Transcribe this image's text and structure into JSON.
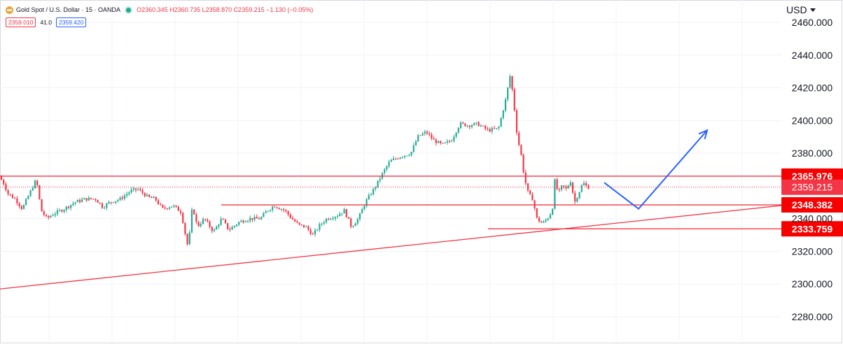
{
  "header": {
    "symbol_title": "Gold Spot / U.S. Dollar · 15 · OANDA",
    "ohlc": "O2360.345 H2360.735 L2358.870 C2359.215 −1.130 (−0.05%)",
    "sell_price": "2359.010",
    "spread": "41.0",
    "buy_price": "2359.420",
    "currency": "USD"
  },
  "colors": {
    "up": "#22ab94",
    "down": "#f23645",
    "line": "#f23645",
    "arrow": "#2962ff",
    "grid": "#f0f3fa"
  },
  "chart_data": {
    "type": "candlestick",
    "y_axis": {
      "min": 2270,
      "max": 2470,
      "ticks": [
        2280,
        2300,
        2320,
        2340,
        2360,
        2380,
        2400,
        2420,
        2440,
        2460
      ],
      "tick_labels": [
        "2280.000",
        "2300.000",
        "2320.000",
        "2340.000",
        "2360.000",
        "2380.000",
        "2400.000",
        "2420.000",
        "2440.000",
        "2460.000"
      ]
    },
    "grid": true,
    "price_path": [
      [
        0,
        2367
      ],
      [
        8,
        2362
      ],
      [
        15,
        2355
      ],
      [
        25,
        2352
      ],
      [
        35,
        2346
      ],
      [
        45,
        2355
      ],
      [
        55,
        2364
      ],
      [
        62,
        2345
      ],
      [
        70,
        2340
      ],
      [
        80,
        2343
      ],
      [
        95,
        2346
      ],
      [
        110,
        2350
      ],
      [
        125,
        2352
      ],
      [
        140,
        2352
      ],
      [
        150,
        2347
      ],
      [
        160,
        2350
      ],
      [
        175,
        2352
      ],
      [
        190,
        2357
      ],
      [
        200,
        2358
      ],
      [
        215,
        2353
      ],
      [
        225,
        2352
      ],
      [
        235,
        2346
      ],
      [
        250,
        2348
      ],
      [
        262,
        2344
      ],
      [
        268,
        2330
      ],
      [
        272,
        2322
      ],
      [
        278,
        2348
      ],
      [
        285,
        2335
      ],
      [
        295,
        2340
      ],
      [
        308,
        2332
      ],
      [
        320,
        2340
      ],
      [
        330,
        2333
      ],
      [
        345,
        2338
      ],
      [
        360,
        2340
      ],
      [
        375,
        2340
      ],
      [
        385,
        2345
      ],
      [
        395,
        2348
      ],
      [
        410,
        2345
      ],
      [
        420,
        2340
      ],
      [
        430,
        2336
      ],
      [
        440,
        2335
      ],
      [
        450,
        2330
      ],
      [
        460,
        2336
      ],
      [
        470,
        2340
      ],
      [
        485,
        2342
      ],
      [
        495,
        2345
      ],
      [
        505,
        2335
      ],
      [
        515,
        2340
      ],
      [
        525,
        2350
      ],
      [
        540,
        2360
      ],
      [
        550,
        2368
      ],
      [
        560,
        2375
      ],
      [
        575,
        2378
      ],
      [
        590,
        2380
      ],
      [
        600,
        2390
      ],
      [
        612,
        2393
      ],
      [
        622,
        2388
      ],
      [
        635,
        2385
      ],
      [
        648,
        2388
      ],
      [
        660,
        2398
      ],
      [
        672,
        2397
      ],
      [
        685,
        2398
      ],
      [
        700,
        2394
      ],
      [
        715,
        2395
      ],
      [
        725,
        2412
      ],
      [
        732,
        2428
      ],
      [
        736,
        2415
      ],
      [
        742,
        2390
      ],
      [
        748,
        2378
      ],
      [
        752,
        2365
      ],
      [
        758,
        2355
      ],
      [
        764,
        2352
      ],
      [
        770,
        2340
      ],
      [
        778,
        2337
      ],
      [
        785,
        2340
      ],
      [
        792,
        2345
      ],
      [
        796,
        2365
      ],
      [
        800,
        2355
      ],
      [
        806,
        2360
      ],
      [
        812,
        2358
      ],
      [
        818,
        2363
      ],
      [
        824,
        2350
      ],
      [
        830,
        2356
      ],
      [
        836,
        2362
      ],
      [
        842,
        2359.2
      ]
    ],
    "horizontal_lines": [
      {
        "label": "2365.976",
        "price": 2365.976
      },
      {
        "label": "2348.382",
        "price": 2348.382
      },
      {
        "label": "2333.759",
        "price": 2333.759
      }
    ],
    "last_price": {
      "label": "2359.215",
      "price": 2359.215
    },
    "trendline": {
      "from": [
        0,
        2297
      ],
      "to": [
        1116,
        2348
      ]
    },
    "projection_arrow": [
      [
        863,
        2362
      ],
      [
        912,
        2346
      ],
      [
        1010,
        2394
      ]
    ]
  }
}
